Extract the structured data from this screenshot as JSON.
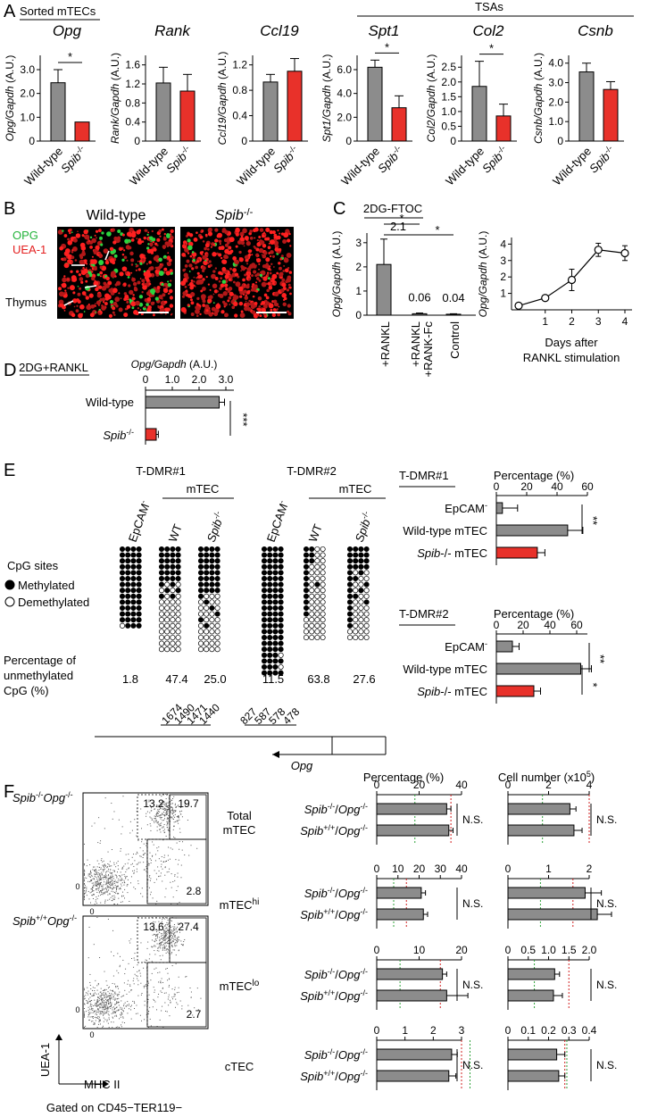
{
  "colors": {
    "wildtype": "#8c8c8c",
    "mutant": "#e8312a",
    "green": "#2fa33a",
    "red_line": "#d12020",
    "opg_stain": "#2bd43f",
    "uea_stain": "#ff2020"
  },
  "panelA": {
    "letter": "A",
    "group1": "Sorted mTECs",
    "group2": "TSAs",
    "categories": [
      "Wild-type",
      "Spib-/-"
    ],
    "cat_base": [
      "Wild-type",
      "Spib"
    ],
    "cat_sup": "-/-",
    "charts": [
      {
        "gene": "Opg",
        "ylabel": "Opg/Gapdh (A.U.)",
        "ylim": [
          0,
          3.6
        ],
        "ticks": [
          "0",
          "1.0",
          "2.0",
          "3.0"
        ],
        "tickvals": [
          0,
          1,
          2,
          3
        ],
        "values": [
          2.45,
          0.8
        ],
        "errors": [
          0.55,
          0
        ],
        "sig": "*"
      },
      {
        "gene": "Rank",
        "ylabel": "Rank/Gapdh (A.U.)",
        "ylim": [
          0,
          1.8
        ],
        "ticks": [
          "0",
          "0.4",
          "0.8",
          "1.2",
          "1.6"
        ],
        "tickvals": [
          0,
          0.4,
          0.8,
          1.2,
          1.6
        ],
        "values": [
          1.22,
          1.05
        ],
        "errors": [
          0.33,
          0.35
        ],
        "sig": ""
      },
      {
        "gene": "Ccl19",
        "ylabel": "Ccl19/Gapdh (A.U.)",
        "ylim": [
          0,
          1.35
        ],
        "ticks": [
          "0",
          "0.4",
          "0.8",
          "1.2"
        ],
        "tickvals": [
          0,
          0.4,
          0.8,
          1.2
        ],
        "values": [
          0.93,
          1.1
        ],
        "errors": [
          0.12,
          0.2
        ],
        "sig": ""
      },
      {
        "gene": "Spt1",
        "ylabel": "Spt1/Gapdh (A.U.)",
        "ylim": [
          0,
          7.2
        ],
        "ticks": [
          "0",
          "2.0",
          "4.0",
          "6.0"
        ],
        "tickvals": [
          0,
          2,
          4,
          6
        ],
        "values": [
          6.2,
          2.8
        ],
        "errors": [
          0.6,
          1.0
        ],
        "sig": "*"
      },
      {
        "gene": "Col2",
        "ylabel": "Col2/Gapdh (A.U.)",
        "ylim": [
          0,
          2.9
        ],
        "ticks": [
          "0",
          "0.5",
          "1.0",
          "1.5",
          "2.0",
          "2.5"
        ],
        "tickvals": [
          0,
          0.5,
          1,
          1.5,
          2,
          2.5
        ],
        "values": [
          1.85,
          0.85
        ],
        "errors": [
          0.85,
          0.4
        ],
        "sig": "*"
      },
      {
        "gene": "Csnb",
        "ylabel": "Csnb/Gapdh (A.U.)",
        "ylim": [
          0,
          4.4
        ],
        "ticks": [
          "0",
          "1.0",
          "2.0",
          "3.0",
          "4.0"
        ],
        "tickvals": [
          0,
          1,
          2,
          3,
          4
        ],
        "values": [
          3.55,
          2.65
        ],
        "errors": [
          0.45,
          0.4
        ],
        "sig": ""
      }
    ]
  },
  "panelB": {
    "letter": "B",
    "wt_title": "Wild-type",
    "ko_title": "Spib",
    "ko_sup": "-/-",
    "legend_opg": "OPG",
    "legend_uea": "UEA-1",
    "tissue": "Thymus"
  },
  "panelC": {
    "letter": "C",
    "title": "2DG-FTOC",
    "bar_ylabel": "Opg/Gapdh (A.U.)",
    "bar_ticks": [
      "0",
      "1",
      "2",
      "3"
    ],
    "bar_categories": [
      "+RANKL",
      "+RANKL +RANK-Fc",
      "Control"
    ],
    "bar_values": [
      2.1,
      0.06,
      0.04
    ],
    "bar_errors": [
      1.05,
      0.03,
      0.02
    ],
    "bar_value_labels": [
      "2.1",
      "0.06",
      "0.04"
    ],
    "sig": "*",
    "line_ylabel": "Opg/Gapdh (A.U.)",
    "line_yticks": [
      "1",
      "2",
      "3",
      "4"
    ],
    "line_xticks": [
      "1",
      "2",
      "3",
      "4"
    ],
    "line_x": [
      0,
      1,
      2,
      3,
      4
    ],
    "line_y": [
      0.25,
      0.72,
      1.82,
      3.65,
      3.45
    ],
    "line_err": [
      0.05,
      0.08,
      0.65,
      0.4,
      0.45
    ],
    "xlabel_line1": "Days after",
    "xlabel_line2": "RANKL stimulation"
  },
  "panelD": {
    "letter": "D",
    "title": "2DG+RANKL",
    "xlabel": "Opg/Gapdh (A.U.)",
    "ticks": [
      "0",
      "1.0",
      "2.0",
      "3.0"
    ],
    "categories": [
      "Wild-type",
      "Spib-/-"
    ],
    "values": [
      2.75,
      0.4
    ],
    "errors": [
      0.2,
      0.08
    ],
    "sig": "***"
  },
  "panelE": {
    "letter": "E",
    "dmr1": "T-DMR#1",
    "dmr2": "T-DMR#2",
    "mtec": "mTEC",
    "col_epcam": "EpCAM",
    "col_wt": "WT",
    "col_ko": "Spib",
    "legend_title": "CpG sites",
    "legend_meth": "Methylated",
    "legend_demeth": "Demethylated",
    "pct_line1": "Percentage of",
    "pct_line2": "unmethylated",
    "pct_line3": "CpG (%)",
    "pct_values": [
      "1.8",
      "47.4",
      "25.0",
      "11.5",
      "63.8",
      "27.6"
    ],
    "positions1": [
      "1674",
      "1490",
      "1471",
      "1440"
    ],
    "positions2": [
      "827",
      "587",
      "578",
      "478"
    ],
    "gene": "Opg",
    "bars": [
      {
        "title": "T-DMR#1",
        "xlabel": "Percentage (%)",
        "ticks": [
          "0",
          "20",
          "40",
          "60"
        ],
        "categories": [
          "EpCAM-",
          "Wild-type mTEC",
          "Spib-/- mTEC"
        ],
        "values": [
          4,
          47,
          27
        ],
        "errors": [
          10,
          10,
          5
        ],
        "sig": [
          "**"
        ]
      },
      {
        "title": "T-DMR#2",
        "xlabel": "Percentage (%)",
        "ticks": [
          "0",
          "20",
          "40",
          "60"
        ],
        "categories": [
          "EpCAM-",
          "Wild-type mTEC",
          "Spib-/- mTEC"
        ],
        "values": [
          12,
          63,
          28
        ],
        "errors": [
          5,
          8,
          5
        ],
        "sig": [
          "**",
          "*"
        ]
      }
    ]
  },
  "panelF": {
    "letter": "F",
    "flow_labels": [
      "Spib-/-Opg-/-",
      "Spib+/+Opg-/-"
    ],
    "flow_values": [
      [
        "13.2",
        "19.7",
        "2.8"
      ],
      [
        "13.6",
        "27.4",
        "2.7"
      ]
    ],
    "flow_zero": "0",
    "flow_yaxis": "UEA-1",
    "flow_xaxis": "MHC II",
    "gated_on": "Gated on CD45−TER119−",
    "pct_title": "Percentage (%)",
    "cell_title": "Cell number (x10",
    "cell_sup": "5",
    "cell_close": ")",
    "ns": "N.S.",
    "row_labels": [
      "Total mTEC",
      "mTEChi",
      "mTEClo",
      "cTEC"
    ],
    "categories": [
      "Spib-/-/Opg-/-",
      "Spib+/+/Opg-/-"
    ],
    "rows": [
      {
        "name": "Total mTEC",
        "pct_ticks": [
          "0",
          "20",
          "40"
        ],
        "pct_max": 40,
        "pct_values": [
          33,
          34
        ],
        "pct_err": [
          2,
          2
        ],
        "pct_green": 18,
        "pct_red": 35,
        "cell_ticks": [
          "0",
          "2",
          "4"
        ],
        "cell_max": 4,
        "cell_values": [
          3.05,
          3.25
        ],
        "cell_err": [
          0.3,
          0.4
        ],
        "cell_green": 1.7,
        "cell_red": 4.0
      },
      {
        "name": "mTEChi",
        "pct_ticks": [
          "0",
          "10",
          "20",
          "30",
          "40"
        ],
        "pct_max": 40,
        "pct_values": [
          21,
          22
        ],
        "pct_err": [
          2,
          2
        ],
        "pct_green": 8,
        "pct_red": 14,
        "cell_ticks": [
          "0",
          "1",
          "2"
        ],
        "cell_max": 2,
        "cell_values": [
          1.9,
          2.2
        ],
        "cell_err": [
          0.4,
          0.35
        ],
        "cell_green": 0.8,
        "cell_red": 1.6
      },
      {
        "name": "mTEClo",
        "pct_ticks": [
          "0",
          "10",
          "20"
        ],
        "pct_max": 20,
        "pct_values": [
          15.5,
          16.5
        ],
        "pct_err": [
          1,
          5
        ],
        "pct_green": 5.5,
        "pct_red": 15,
        "cell_ticks": [
          "0",
          "0.5",
          "1.0",
          "1.5",
          "2.0"
        ],
        "cell_max": 2,
        "cell_values": [
          1.15,
          1.12
        ],
        "cell_err": [
          0.12,
          0.22
        ],
        "cell_green": 0.65,
        "cell_red": 1.5
      },
      {
        "name": "cTEC",
        "pct_ticks": [
          "0",
          "1",
          "2",
          "3"
        ],
        "pct_max": 3,
        "pct_values": [
          2.65,
          2.55
        ],
        "pct_err": [
          0.2,
          0.25
        ],
        "pct_green": 3.3,
        "pct_red": 3.0,
        "cell_ticks": [
          "0",
          "0.1",
          "0.2",
          "0.3",
          "0.4"
        ],
        "cell_max": 0.4,
        "cell_values": [
          0.24,
          0.25
        ],
        "cell_err": [
          0.04,
          0.03
        ],
        "cell_green": 0.29,
        "cell_red": 0.28
      }
    ]
  },
  "chart_data": [
    {
      "type": "bar",
      "title": "Opg",
      "ylabel": "Opg/Gapdh (A.U.)",
      "categories": [
        "Wild-type",
        "Spib-/-"
      ],
      "values": [
        2.45,
        0.8
      ],
      "ylim": [
        0,
        3.6
      ]
    },
    {
      "type": "bar",
      "title": "Rank",
      "ylabel": "Rank/Gapdh (A.U.)",
      "categories": [
        "Wild-type",
        "Spib-/-"
      ],
      "values": [
        1.22,
        1.05
      ],
      "ylim": [
        0,
        1.8
      ]
    },
    {
      "type": "bar",
      "title": "Ccl19",
      "ylabel": "Ccl19/Gapdh (A.U.)",
      "categories": [
        "Wild-type",
        "Spib-/-"
      ],
      "values": [
        0.93,
        1.1
      ],
      "ylim": [
        0,
        1.35
      ]
    },
    {
      "type": "bar",
      "title": "Spt1",
      "ylabel": "Spt1/Gapdh (A.U.)",
      "categories": [
        "Wild-type",
        "Spib-/-"
      ],
      "values": [
        6.2,
        2.8
      ],
      "ylim": [
        0,
        7.2
      ]
    },
    {
      "type": "bar",
      "title": "Col2",
      "ylabel": "Col2/Gapdh (A.U.)",
      "categories": [
        "Wild-type",
        "Spib-/-"
      ],
      "values": [
        1.85,
        0.85
      ],
      "ylim": [
        0,
        2.9
      ]
    },
    {
      "type": "bar",
      "title": "Csnb",
      "ylabel": "Csnb/Gapdh (A.U.)",
      "categories": [
        "Wild-type",
        "Spib-/-"
      ],
      "values": [
        3.55,
        2.65
      ],
      "ylim": [
        0,
        4.4
      ]
    },
    {
      "type": "bar",
      "title": "2DG-FTOC",
      "ylabel": "Opg/Gapdh (A.U.)",
      "categories": [
        "+RANKL",
        "+RANKL +RANK-Fc",
        "Control"
      ],
      "values": [
        2.1,
        0.06,
        0.04
      ],
      "ylim": [
        0,
        3.4
      ]
    },
    {
      "type": "line",
      "ylabel": "Opg/Gapdh (A.U.)",
      "xlabel": "Days after RANKL stimulation",
      "x": [
        0,
        1,
        2,
        3,
        4
      ],
      "y": [
        0.25,
        0.72,
        1.82,
        3.65,
        3.45
      ],
      "ylim": [
        0,
        4.4
      ]
    },
    {
      "type": "bar",
      "title": "2DG+RANKL",
      "xlabel": "Opg/Gapdh (A.U.)",
      "categories": [
        "Wild-type",
        "Spib-/-"
      ],
      "values": [
        2.75,
        0.4
      ],
      "xlim": [
        0,
        3.3
      ]
    },
    {
      "type": "bar",
      "title": "T-DMR#1",
      "xlabel": "Percentage (%)",
      "categories": [
        "EpCAM-",
        "Wild-type mTEC",
        "Spib-/- mTEC"
      ],
      "values": [
        4,
        47,
        27
      ],
      "xlim": [
        0,
        60
      ]
    },
    {
      "type": "bar",
      "title": "T-DMR#2",
      "xlabel": "Percentage (%)",
      "categories": [
        "EpCAM-",
        "Wild-type mTEC",
        "Spib-/- mTEC"
      ],
      "values": [
        12,
        63,
        28
      ],
      "xlim": [
        0,
        68
      ]
    },
    {
      "type": "bar",
      "title": "Total mTEC",
      "series": [
        {
          "name": "Percentage (%)",
          "values": [
            33,
            34
          ]
        },
        {
          "name": "Cell number (x10^5)",
          "values": [
            3.05,
            3.25
          ]
        }
      ],
      "categories": [
        "Spib-/-/Opg-/-",
        "Spib+/+/Opg-/-"
      ]
    },
    {
      "type": "bar",
      "title": "mTEChi",
      "series": [
        {
          "name": "Percentage (%)",
          "values": [
            21,
            22
          ]
        },
        {
          "name": "Cell number (x10^5)",
          "values": [
            1.9,
            2.2
          ]
        }
      ],
      "categories": [
        "Spib-/-/Opg-/-",
        "Spib+/+/Opg-/-"
      ]
    },
    {
      "type": "bar",
      "title": "mTEClo",
      "series": [
        {
          "name": "Percentage (%)",
          "values": [
            15.5,
            16.5
          ]
        },
        {
          "name": "Cell number (x10^5)",
          "values": [
            1.15,
            1.12
          ]
        }
      ],
      "categories": [
        "Spib-/-/Opg-/-",
        "Spib+/+/Opg-/-"
      ]
    },
    {
      "type": "bar",
      "title": "cTEC",
      "series": [
        {
          "name": "Percentage (%)",
          "values": [
            2.65,
            2.55
          ]
        },
        {
          "name": "Cell number (x10^5)",
          "values": [
            0.24,
            0.25
          ]
        }
      ],
      "categories": [
        "Spib-/-/Opg-/-",
        "Spib+/+/Opg-/-"
      ]
    }
  ]
}
